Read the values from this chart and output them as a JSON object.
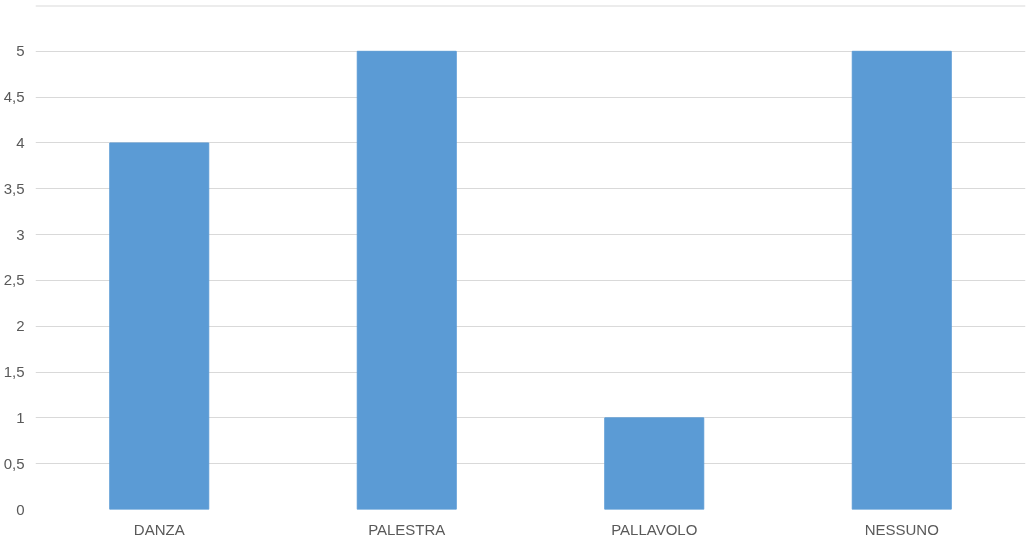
{
  "chart_data": {
    "type": "bar",
    "categories": [
      "DANZA",
      "PALESTRA",
      "PALLAVOLO",
      "NESSUNO"
    ],
    "values": [
      4,
      5,
      1,
      5
    ],
    "color": "#5b9bd5",
    "ylim": [
      0,
      5.5
    ],
    "yticks": [
      0,
      {
        "value": 0.5,
        "label": "0,5"
      },
      1,
      {
        "value": 1.5,
        "label": "1,5"
      },
      2,
      {
        "value": 2.5,
        "label": "2,5"
      },
      3,
      {
        "value": 3.5,
        "label": "3,5"
      },
      4,
      {
        "value": 4.5,
        "label": "4,5"
      },
      5,
      {
        "value": 5.5,
        "label": null
      }
    ],
    "grid": "y"
  }
}
